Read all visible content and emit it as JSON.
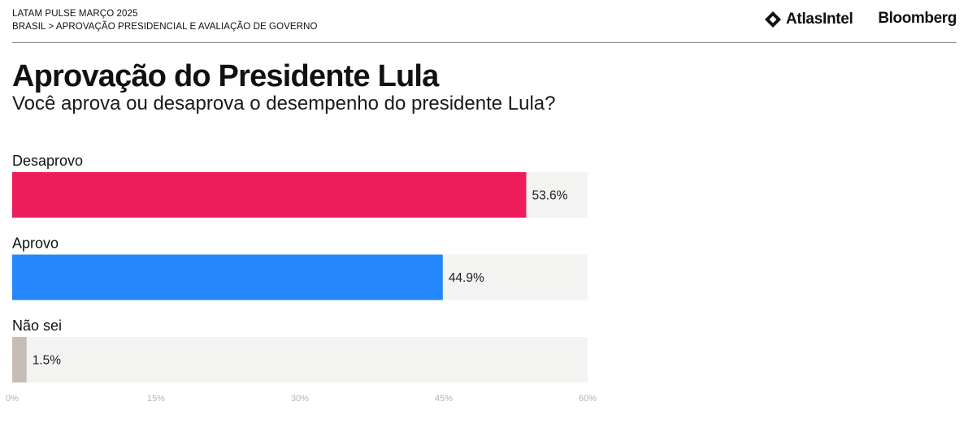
{
  "header": {
    "line1": "LATAM PULSE MARÇO 2025",
    "line2": "BRASIL > APROVAÇÃO PRESIDENCIAL E AVALIAÇÃO DE GOVERNO",
    "logo_atlas": "AtlasIntel",
    "logo_bloomberg": "Bloomberg"
  },
  "chart_data": {
    "type": "bar",
    "orientation": "horizontal",
    "title": "Aprovação do Presidente Lula",
    "subtitle": "Você aprova ou desaprova o desempenho do presidente Lula?",
    "categories": [
      "Desaprovo",
      "Aprovo",
      "Não sei"
    ],
    "values": [
      53.6,
      44.9,
      1.5
    ],
    "value_labels": [
      "53.6%",
      "44.9%",
      "1.5%"
    ],
    "colors": [
      "#ee1c5b",
      "#2487fb",
      "#c8bdb6"
    ],
    "track_color": "#f3f3f2",
    "xlim": [
      0,
      60
    ],
    "x_ticks": [
      0,
      15,
      30,
      45,
      60
    ],
    "x_tick_labels": [
      "0%",
      "15%",
      "30%",
      "45%",
      "60%"
    ],
    "grid": false,
    "legend": "none"
  }
}
